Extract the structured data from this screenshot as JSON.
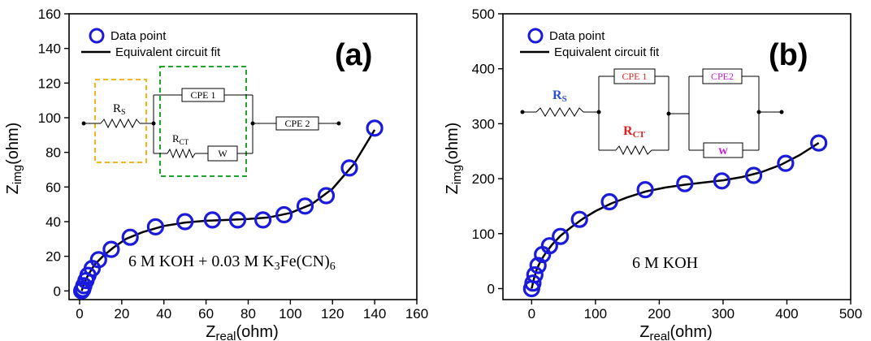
{
  "chart_data": [
    {
      "type": "scatter",
      "panel_label": "(a)",
      "xlabel_main": "Z",
      "xlabel_sub": "real",
      "xlabel_unit": "(ohm)",
      "ylabel_main": "Z",
      "ylabel_sub": "img",
      "ylabel_unit": "(ohm)",
      "xlim": [
        -5,
        160
      ],
      "ylim": [
        -5,
        160
      ],
      "xticks": [
        "0",
        "20",
        "40",
        "60",
        "80",
        "100",
        "120",
        "140",
        "160"
      ],
      "yticks": [
        "0",
        "20",
        "40",
        "60",
        "80",
        "100",
        "120",
        "140",
        "160"
      ],
      "legend": {
        "position": "top-left",
        "entries": [
          "Data point",
          "Equivalent circuit fit"
        ]
      },
      "annotation": {
        "pre": "6 M KOH + 0.03 M K",
        "sub1": "3",
        "mid": "Fe(CN)",
        "sub2": "6"
      },
      "circuit": {
        "rs": {
          "main": "R",
          "sub": "S"
        },
        "cpe1": "CPE 1",
        "rct": {
          "main": "R",
          "sub": "CT"
        },
        "w": "W",
        "cpe2": "CPE 2"
      },
      "series": [
        {
          "name": "Data point",
          "marker": "open-circle",
          "color": "#1a1adc",
          "x": [
            1,
            1.5,
            2,
            3,
            4,
            6,
            9,
            15,
            24,
            36,
            50,
            63,
            75,
            87,
            97,
            107,
            117,
            128,
            140
          ],
          "y": [
            0,
            1,
            3,
            6,
            9,
            13,
            18,
            24,
            31,
            37,
            40,
            41,
            41,
            41,
            44,
            49,
            55,
            71,
            94
          ]
        },
        {
          "name": "Equivalent circuit fit",
          "style": "line",
          "color": "#000000",
          "x": [
            1,
            2,
            4,
            7,
            11,
            16,
            22,
            30,
            40,
            50,
            60,
            70,
            80,
            90,
            100,
            110,
            120,
            130,
            140
          ],
          "y": [
            0,
            4,
            9,
            15,
            20,
            25,
            30,
            34,
            37.5,
            39.5,
            40.5,
            41,
            41.5,
            42.5,
            45,
            50,
            59,
            73,
            93
          ]
        }
      ]
    },
    {
      "type": "scatter",
      "panel_label": "(b)",
      "xlabel_main": "Z",
      "xlabel_sub": "real",
      "xlabel_unit": "(ohm)",
      "ylabel_main": "Z",
      "ylabel_sub": "img",
      "ylabel_unit": "(ohm)",
      "xlim": [
        -45,
        500
      ],
      "ylim": [
        -20,
        500
      ],
      "xticks": [
        "0",
        "100",
        "200",
        "300",
        "400",
        "500"
      ],
      "yticks": [
        "0",
        "100",
        "200",
        "300",
        "400",
        "500"
      ],
      "legend": {
        "position": "top-left",
        "entries": [
          "Data point",
          "Equivalent circuit fit"
        ]
      },
      "annotation": {
        "pre": "6 M KOH"
      },
      "circuit": {
        "rs": {
          "main": "R",
          "sub": "S"
        },
        "cpe1": "CPE 1",
        "rct": {
          "main": "R",
          "sub": "CT"
        },
        "cpe2": "CPE2",
        "w": "W"
      },
      "series": [
        {
          "name": "Data point",
          "marker": "open-circle",
          "color": "#1a1adc",
          "x": [
            0,
            2,
            5,
            10,
            17,
            28,
            45,
            75,
            122,
            178,
            240,
            298,
            348,
            398,
            450
          ],
          "y": [
            0,
            10,
            25,
            42,
            62,
            78,
            95,
            126,
            158,
            180,
            191,
            196,
            206,
            228,
            265
          ],
          "color_note": "blue"
        },
        {
          "name": "Equivalent circuit fit",
          "style": "line",
          "color": "#000000",
          "x": [
            0,
            4,
            8,
            14,
            22,
            32,
            45,
            60,
            80,
            100,
            125,
            150,
            180,
            210,
            240,
            270,
            300,
            330,
            360,
            390,
            420,
            450
          ],
          "y": [
            0,
            20,
            35,
            50,
            65,
            80,
            96,
            110,
            127,
            141,
            155,
            166,
            177,
            184,
            189,
            193,
            197,
            203,
            212,
            225,
            243,
            265
          ]
        }
      ]
    }
  ]
}
